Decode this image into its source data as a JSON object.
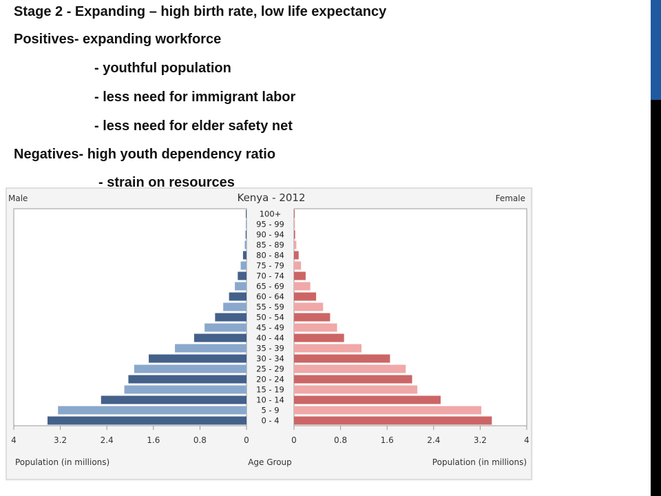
{
  "slide": {
    "lines": [
      "Stage 2 - Expanding – high birth rate, low life expectancy",
      "Positives- expanding workforce",
      "- youthful population",
      "- less need for immigrant labor",
      "- less need for elder safety net",
      "Negatives- high youth dependency ratio",
      "- strain on resources"
    ]
  },
  "colors": {
    "accent_blue": "#1f5aa0",
    "accent_black": "#000000",
    "male_dark": "#44618a",
    "male_light": "#8aa8cc",
    "female_dark": "#cc6666",
    "female_light": "#f0a8a8",
    "frame": "#999999"
  },
  "chart_data": {
    "type": "bar",
    "orientation": "horizontal-pyramid",
    "title": "Kenya - 2012",
    "left_label": "Male",
    "right_label": "Female",
    "xlabel_left": "Population (in millions)",
    "xlabel_center": "Age Group",
    "xlabel_right": "Population (in millions)",
    "x_ticks_left": [
      "4",
      "3.2",
      "2.4",
      "1.6",
      "0.8",
      "0"
    ],
    "x_ticks_right": [
      "0",
      "0.8",
      "1.6",
      "2.4",
      "3.2",
      "4"
    ],
    "xlim": [
      0,
      4
    ],
    "grid": false,
    "categories": [
      "100+",
      "95 - 99",
      "90 - 94",
      "85 - 89",
      "80 - 84",
      "75 - 79",
      "70 - 74",
      "65 - 69",
      "60 - 64",
      "55 - 59",
      "50 - 54",
      "45 - 49",
      "40 - 44",
      "35 - 39",
      "30 - 34",
      "25 - 29",
      "20 - 24",
      "15 - 19",
      "10 - 14",
      "5 - 9",
      "0 - 4"
    ],
    "series": [
      {
        "name": "Male",
        "values": [
          0.005,
          0.01,
          0.015,
          0.03,
          0.06,
          0.1,
          0.15,
          0.2,
          0.3,
          0.4,
          0.54,
          0.72,
          0.9,
          1.23,
          1.68,
          1.93,
          2.03,
          2.1,
          2.5,
          3.24,
          3.42
        ]
      },
      {
        "name": "Female",
        "values": [
          0.01,
          0.015,
          0.02,
          0.04,
          0.08,
          0.12,
          0.2,
          0.28,
          0.38,
          0.5,
          0.62,
          0.74,
          0.86,
          1.16,
          1.65,
          1.92,
          2.03,
          2.12,
          2.52,
          3.22,
          3.4
        ]
      }
    ]
  }
}
